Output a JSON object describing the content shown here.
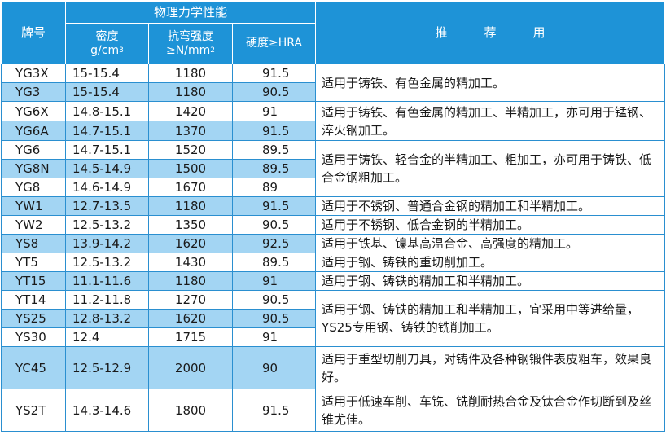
{
  "header": {
    "grade": "牌号",
    "properties": "物理力学性能",
    "density_line1": "密度",
    "density_line2": "g/cm",
    "density_sup": "3",
    "strength_line1": "抗弯强度",
    "strength_line2": "≥N/mm",
    "strength_sup": "2",
    "hardness": "硬度≥HRA",
    "usage": "推　　　荐　　　用"
  },
  "rows": [
    {
      "grade": "YG3X",
      "density": "15-15.4",
      "strength": "1180",
      "hardness": "91.5",
      "shade": "white"
    },
    {
      "grade": "YG3",
      "density": "15-15.4",
      "strength": "1180",
      "hardness": "90.5",
      "shade": "blue"
    },
    {
      "grade": "YG6X",
      "density": "14.8-15.1",
      "strength": "1420",
      "hardness": "91",
      "shade": "white"
    },
    {
      "grade": "YG6A",
      "density": "14.7-15.1",
      "strength": "1370",
      "hardness": "91.5",
      "shade": "blue"
    },
    {
      "grade": "YG6",
      "density": "14.7-15.1",
      "strength": "1520",
      "hardness": "89.5",
      "shade": "white"
    },
    {
      "grade": "YG8N",
      "density": "14.5-14.9",
      "strength": "1500",
      "hardness": "89.5",
      "shade": "blue"
    },
    {
      "grade": "YG8",
      "density": "14.6-14.9",
      "strength": "1670",
      "hardness": "89",
      "shade": "white"
    },
    {
      "grade": "YW1",
      "density": "12.7-13.5",
      "strength": "1180",
      "hardness": "91.5",
      "shade": "blue"
    },
    {
      "grade": "YW2",
      "density": "12.5-13.2",
      "strength": "1350",
      "hardness": "90.5",
      "shade": "white"
    },
    {
      "grade": "YS8",
      "density": "13.9-14.2",
      "strength": "1620",
      "hardness": "92.5",
      "shade": "blue"
    },
    {
      "grade": "YT5",
      "density": "12.5-13.2",
      "strength": "1430",
      "hardness": "89.5",
      "shade": "white"
    },
    {
      "grade": "YT15",
      "density": "11.1-11.6",
      "strength": "1180",
      "hardness": "91",
      "shade": "blue"
    },
    {
      "grade": "YT14",
      "density": "11.2-11.8",
      "strength": "1270",
      "hardness": "90.5",
      "shade": "white"
    },
    {
      "grade": "YS25",
      "density": "12.8-13.2",
      "strength": "1620",
      "hardness": "90.5",
      "shade": "blue"
    },
    {
      "grade": "YS30",
      "density": "12.4",
      "strength": "1715",
      "hardness": "91",
      "shade": "white"
    },
    {
      "grade": "YC45",
      "density": "12.5-12.9",
      "strength": "2000",
      "hardness": "90",
      "shade": "blue"
    },
    {
      "grade": "YS2T",
      "density": "14.3-14.6",
      "strength": "1800",
      "hardness": "91.5",
      "shade": "white"
    }
  ],
  "usages": [
    "适用于铸铁、有色金属的精加工。",
    "适用于铸铁、有色金属的精加工、半精加工，亦可用于锰钢、淬火钢加工。",
    "适用于铸铁、轻合金的半精加工、粗加工，亦可用于铸铁、低合金钢粗加工。",
    "适用于不锈钢、普通合金钢的精加工和半精加工。",
    "适用于不锈钢、低合金钢的半精加工。",
    "适用于铁基、镍基高温合金、高强度的精加工。",
    "适用于钢、铸铁的重切削加工。",
    "适用于钢、铸铁的精加工和半精加工。",
    "适用于钢、铸铁的精加工和半精加工，宜采用中等进给量，YS25专用钢、铸铁的铣削加工。",
    "适用于重型切削刀具，对铸件及各种钢锻件表皮粗车，效果良好。",
    "适用于低速车削、车铣、铣削耐热合金及钛合金作切断到及丝锥尤佳。"
  ],
  "colors": {
    "header_bg": "#1e93d7",
    "header_text": "#ffffff",
    "row_highlight": "#a3d5f3",
    "row_plain": "#ffffff",
    "grid_line": "#2a8fd0"
  }
}
